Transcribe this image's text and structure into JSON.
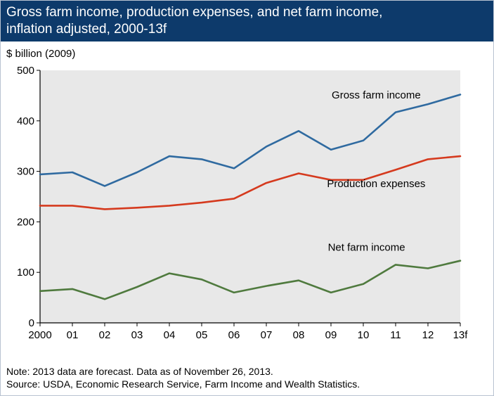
{
  "title": {
    "line1": "Gross farm income, production expenses, and net farm income,",
    "line2": "inflation adjusted, 2000-13f"
  },
  "unit_label": "$ billion (2009)",
  "notes": {
    "note": "Note: 2013 data are forecast. Data as of November 26, 2013.",
    "source": "Source: USDA, Economic Research Service, Farm Income and Wealth Statistics."
  },
  "colors": {
    "title_bg": "#0d3a6b",
    "plot_bg": "#e8e8e8",
    "gross": "#2f6aa0",
    "expenses": "#d53a1e",
    "net": "#4f7a3e"
  },
  "chart_data": {
    "type": "line",
    "title": "Gross farm income, production expenses, and net farm income, inflation adjusted, 2000-13f",
    "ylabel": "$ billion (2009)",
    "xlabel": "",
    "categories": [
      "2000",
      "01",
      "02",
      "03",
      "04",
      "05",
      "06",
      "07",
      "08",
      "09",
      "10",
      "11",
      "12",
      "13f"
    ],
    "ylim": [
      0,
      500
    ],
    "yticks": [
      0,
      100,
      200,
      300,
      400,
      500
    ],
    "grid": false,
    "series": [
      {
        "name": "Gross farm income",
        "values": [
          294,
          298,
          271,
          298,
          330,
          324,
          306,
          349,
          380,
          343,
          361,
          417,
          433,
          452
        ]
      },
      {
        "name": "Production expenses",
        "values": [
          232,
          232,
          225,
          228,
          232,
          238,
          246,
          277,
          296,
          283,
          283,
          303,
          324,
          330
        ]
      },
      {
        "name": "Net farm income",
        "values": [
          63,
          67,
          47,
          71,
          98,
          86,
          60,
          73,
          84,
          60,
          77,
          115,
          108,
          123
        ]
      }
    ]
  }
}
